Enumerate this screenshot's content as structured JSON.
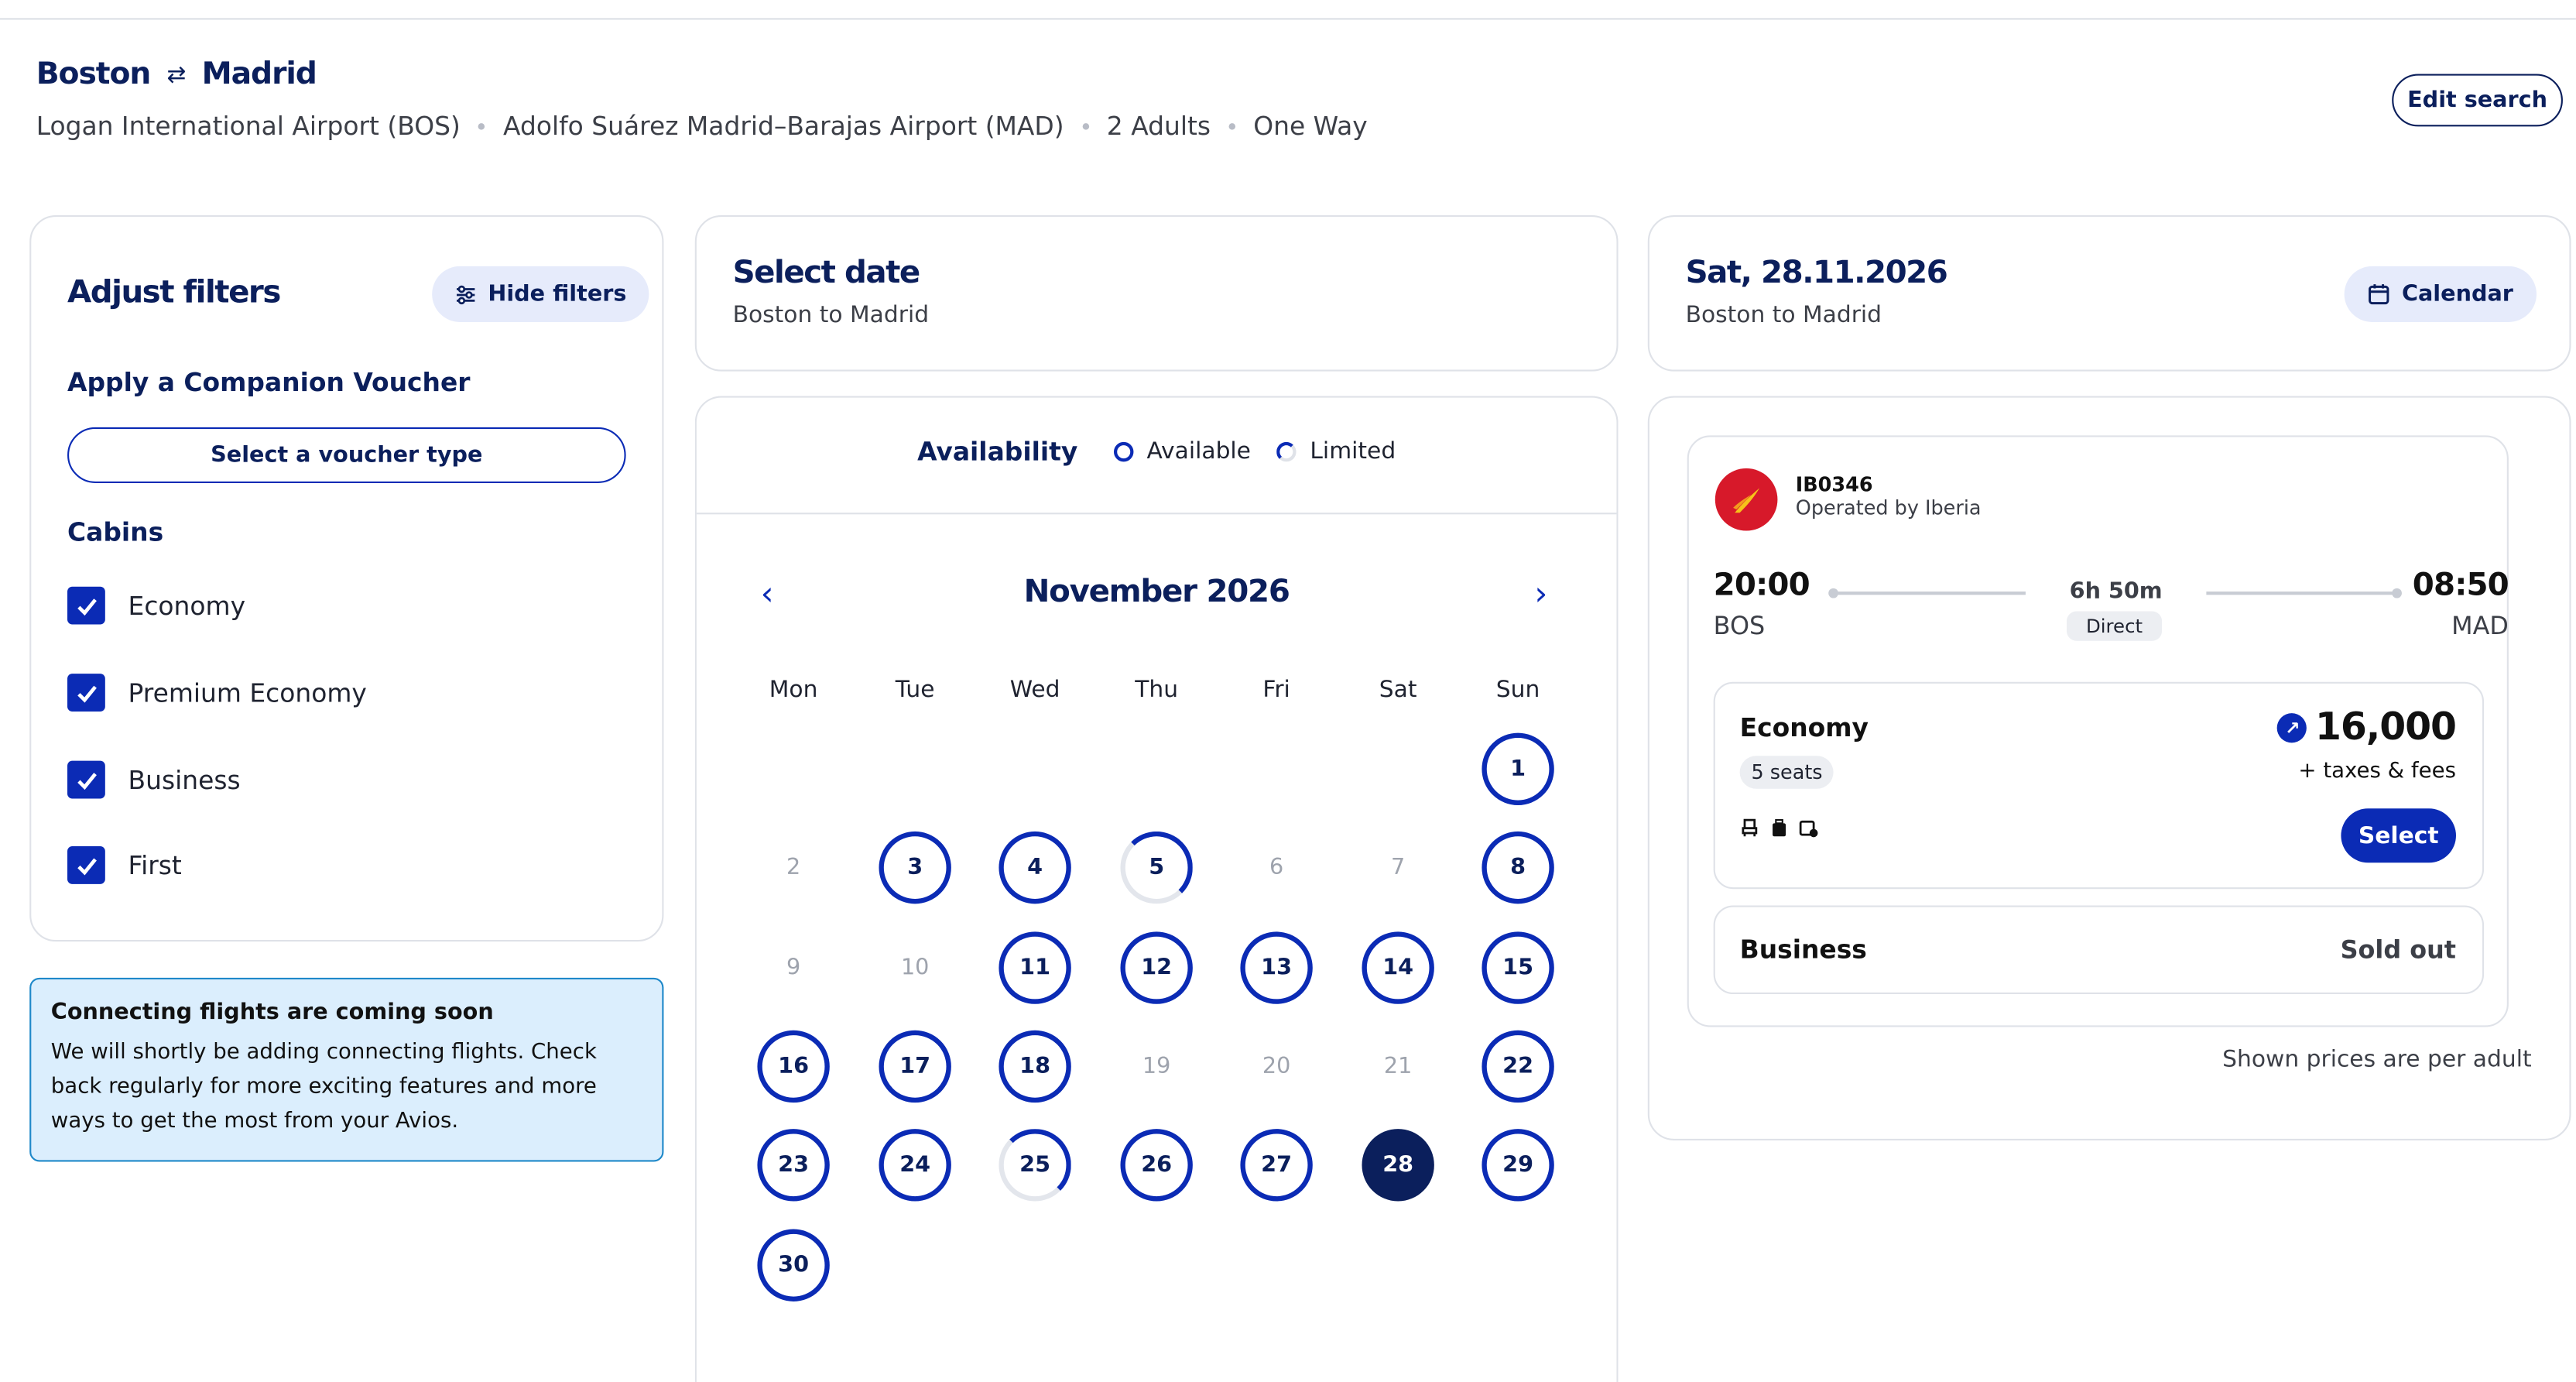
{
  "header": {
    "origin_city": "Boston",
    "destination_city": "Madrid",
    "swap_icon": "⇄",
    "origin_airport": "Logan International Airport (BOS)",
    "destination_airport": "Adolfo Suárez Madrid–Barajas Airport (MAD)",
    "passengers": "2 Adults",
    "trip_type": "One Way",
    "edit_label": "Edit search"
  },
  "filters": {
    "title": "Adjust filters",
    "hide_label": "Hide filters",
    "voucher_title": "Apply a Companion Voucher",
    "voucher_button": "Select a voucher type",
    "cabins_title": "Cabins",
    "cabins": [
      {
        "label": "Economy",
        "checked": true
      },
      {
        "label": "Premium Economy",
        "checked": true
      },
      {
        "label": "Business",
        "checked": true
      },
      {
        "label": "First",
        "checked": true
      }
    ]
  },
  "notice": {
    "title": "Connecting flights are coming soon",
    "body": "We will shortly be adding connecting flights. Check back regularly for more exciting features and more ways to get the most from your Avios."
  },
  "date_select": {
    "title": "Select date",
    "subtitle": "Boston to Madrid"
  },
  "calendar": {
    "availability_label": "Availability",
    "available_label": "Available",
    "limited_label": "Limited",
    "month": "November 2026",
    "weekdays": [
      "Mon",
      "Tue",
      "Wed",
      "Thu",
      "Fri",
      "Sat",
      "Sun"
    ],
    "days": [
      {
        "d": "1",
        "s": "avail"
      },
      {
        "d": "2",
        "s": "none"
      },
      {
        "d": "3",
        "s": "avail"
      },
      {
        "d": "4",
        "s": "avail"
      },
      {
        "d": "5",
        "s": "lim"
      },
      {
        "d": "6",
        "s": "none"
      },
      {
        "d": "7",
        "s": "none"
      },
      {
        "d": "8",
        "s": "avail"
      },
      {
        "d": "9",
        "s": "none"
      },
      {
        "d": "10",
        "s": "none"
      },
      {
        "d": "11",
        "s": "avail"
      },
      {
        "d": "12",
        "s": "avail"
      },
      {
        "d": "13",
        "s": "avail"
      },
      {
        "d": "14",
        "s": "avail"
      },
      {
        "d": "15",
        "s": "avail"
      },
      {
        "d": "16",
        "s": "avail"
      },
      {
        "d": "17",
        "s": "avail"
      },
      {
        "d": "18",
        "s": "avail"
      },
      {
        "d": "19",
        "s": "none"
      },
      {
        "d": "20",
        "s": "none"
      },
      {
        "d": "21",
        "s": "none"
      },
      {
        "d": "22",
        "s": "avail"
      },
      {
        "d": "23",
        "s": "avail"
      },
      {
        "d": "24",
        "s": "avail"
      },
      {
        "d": "25",
        "s": "lim"
      },
      {
        "d": "26",
        "s": "avail"
      },
      {
        "d": "27",
        "s": "avail"
      },
      {
        "d": "28",
        "s": "sel"
      },
      {
        "d": "29",
        "s": "avail"
      },
      {
        "d": "30",
        "s": "avail"
      }
    ],
    "first_weekday_index": 6
  },
  "result": {
    "date": "Sat, 28.11.2026",
    "subtitle": "Boston to Madrid",
    "calendar_label": "Calendar",
    "flight_number": "IB0346",
    "operated_by": "Operated by Iberia",
    "depart_time": "20:00",
    "depart_code": "BOS",
    "arrive_time": "08:50",
    "arrive_code": "MAD",
    "duration": "6h 50m",
    "stops": "Direct",
    "fares": [
      {
        "cabin": "Economy",
        "seats": "5 seats",
        "price": "16,000",
        "taxes": "+ taxes & fees",
        "action": "Select"
      },
      {
        "cabin": "Business",
        "status": "Sold out"
      }
    ],
    "footnote": "Shown prices are per adult",
    "brand_color": "#d7192a"
  }
}
